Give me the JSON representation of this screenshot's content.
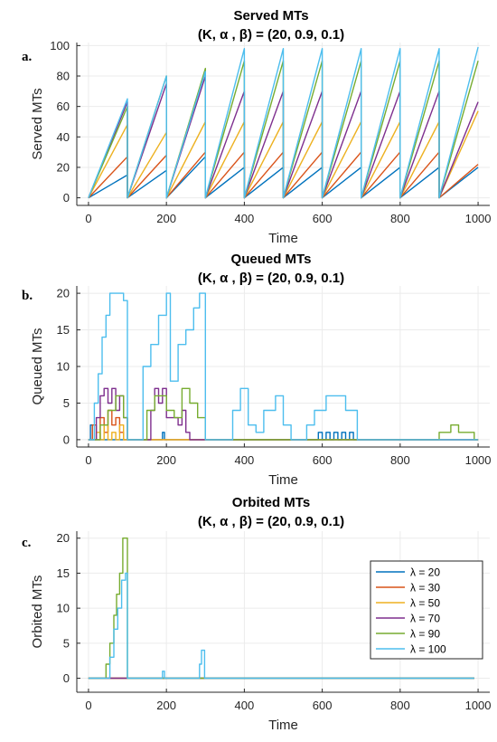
{
  "chart_data": [
    {
      "type": "line",
      "panel_label": "a.",
      "title": "Served MTs",
      "subtitle": "(K, α , β) =  (20, 0.9, 0.1)",
      "xlabel": "Time",
      "ylabel": "Served MTs",
      "xlim": [
        -30,
        1030
      ],
      "ylim": [
        -5,
        102
      ],
      "xticks": [
        0,
        200,
        400,
        600,
        800,
        1000
      ],
      "yticks": [
        0,
        20,
        40,
        60,
        80,
        100
      ],
      "grid": true,
      "series": [
        {
          "name": "λ = 20",
          "color": "#0072BD",
          "x": [
            0,
            100,
            100,
            200,
            200,
            300,
            300,
            400,
            400,
            500,
            500,
            600,
            600,
            700,
            700,
            800,
            800,
            900,
            900,
            1000
          ],
          "y": [
            0,
            15,
            0,
            18,
            0,
            27,
            0,
            20,
            0,
            20,
            0,
            20,
            0,
            20,
            0,
            20,
            0,
            20,
            0,
            20
          ]
        },
        {
          "name": "λ = 30",
          "color": "#D95319",
          "x": [
            0,
            100,
            100,
            200,
            200,
            300,
            300,
            400,
            400,
            500,
            500,
            600,
            600,
            700,
            700,
            800,
            800,
            900,
            900,
            1000
          ],
          "y": [
            0,
            27,
            0,
            28,
            0,
            30,
            0,
            30,
            0,
            30,
            0,
            30,
            0,
            30,
            0,
            30,
            0,
            30,
            0,
            22
          ]
        },
        {
          "name": "λ = 50",
          "color": "#EDB120",
          "x": [
            0,
            100,
            100,
            200,
            200,
            300,
            300,
            400,
            400,
            500,
            500,
            600,
            600,
            700,
            700,
            800,
            800,
            900,
            900,
            1000
          ],
          "y": [
            0,
            48,
            0,
            43,
            0,
            50,
            0,
            50,
            0,
            50,
            0,
            50,
            0,
            50,
            0,
            50,
            0,
            50,
            0,
            57
          ]
        },
        {
          "name": "λ = 70",
          "color": "#7E2F8E",
          "x": [
            0,
            100,
            100,
            200,
            200,
            300,
            300,
            400,
            400,
            500,
            500,
            600,
            600,
            700,
            700,
            800,
            800,
            900,
            900,
            1000
          ],
          "y": [
            0,
            63,
            0,
            75,
            0,
            80,
            0,
            70,
            0,
            70,
            0,
            70,
            0,
            70,
            0,
            70,
            0,
            70,
            0,
            63
          ]
        },
        {
          "name": "λ = 90",
          "color": "#77AC30",
          "x": [
            0,
            100,
            100,
            200,
            200,
            300,
            300,
            400,
            400,
            500,
            500,
            600,
            600,
            700,
            700,
            800,
            800,
            900,
            900,
            1000
          ],
          "y": [
            0,
            60,
            0,
            80,
            0,
            85,
            0,
            90,
            0,
            90,
            0,
            90,
            0,
            90,
            0,
            90,
            0,
            90,
            0,
            90
          ]
        },
        {
          "name": "λ = 100",
          "color": "#4DBEEE",
          "x": [
            0,
            100,
            100,
            200,
            200,
            300,
            300,
            400,
            400,
            500,
            500,
            600,
            600,
            700,
            700,
            800,
            800,
            900,
            900,
            1000
          ],
          "y": [
            0,
            65,
            0,
            80,
            0,
            83,
            0,
            98,
            0,
            98,
            0,
            98,
            0,
            98,
            0,
            98,
            0,
            98,
            0,
            99
          ]
        }
      ]
    },
    {
      "type": "line",
      "panel_label": "b.",
      "title": "Queued MTs",
      "subtitle": "(K, α , β) =  (20, 0.9, 0.1)",
      "xlabel": "Time",
      "ylabel": "Queued MTs",
      "xlim": [
        -30,
        1030
      ],
      "ylim": [
        -1,
        21
      ],
      "xticks": [
        0,
        200,
        400,
        600,
        800,
        1000
      ],
      "yticks": [
        0,
        5,
        10,
        15,
        20
      ],
      "grid": true,
      "series": [
        {
          "name": "λ = 20",
          "color": "#0072BD",
          "x": [
            0,
            5,
            5,
            10,
            10,
            190,
            190,
            195,
            195,
            200,
            200,
            590,
            590,
            600,
            600,
            610,
            610,
            620,
            620,
            630,
            630,
            640,
            640,
            650,
            650,
            660,
            660,
            670,
            670,
            680,
            680,
            690,
            690,
            1000
          ],
          "y": [
            0,
            0,
            2,
            2,
            0,
            0,
            1,
            1,
            0,
            0,
            0,
            0,
            1,
            1,
            0,
            0,
            1,
            1,
            0,
            0,
            1,
            1,
            0,
            0,
            1,
            1,
            0,
            0,
            1,
            1,
            0,
            0,
            0,
            0
          ]
        },
        {
          "name": "λ = 30",
          "color": "#D95319",
          "x": [
            0,
            10,
            10,
            20,
            20,
            30,
            30,
            40,
            40,
            50,
            50,
            60,
            60,
            70,
            70,
            80,
            80,
            90,
            90,
            1000
          ],
          "y": [
            0,
            0,
            2,
            2,
            0,
            0,
            3,
            3,
            1,
            1,
            4,
            4,
            2,
            2,
            3,
            3,
            1,
            1,
            0,
            0
          ]
        },
        {
          "name": "λ = 50",
          "color": "#EDB120",
          "x": [
            0,
            20,
            20,
            30,
            30,
            40,
            40,
            50,
            50,
            60,
            60,
            70,
            70,
            80,
            80,
            90,
            90,
            1000
          ],
          "y": [
            0,
            0,
            1,
            1,
            0,
            0,
            2,
            2,
            0,
            0,
            1,
            1,
            0,
            0,
            2,
            2,
            0,
            0
          ]
        },
        {
          "name": "λ = 70",
          "color": "#7E2F8E",
          "x": [
            0,
            20,
            20,
            30,
            30,
            40,
            40,
            50,
            50,
            60,
            60,
            70,
            70,
            80,
            80,
            90,
            90,
            100,
            100,
            160,
            160,
            170,
            170,
            180,
            180,
            190,
            190,
            200,
            200,
            230,
            230,
            240,
            240,
            250,
            250,
            260,
            260,
            1000
          ],
          "y": [
            0,
            0,
            3,
            3,
            6,
            6,
            7,
            7,
            5,
            5,
            7,
            7,
            4,
            4,
            6,
            6,
            3,
            3,
            0,
            0,
            4,
            4,
            7,
            7,
            5,
            5,
            7,
            7,
            3,
            3,
            2,
            2,
            4,
            4,
            1,
            1,
            0,
            0
          ]
        },
        {
          "name": "λ = 90",
          "color": "#77AC30",
          "x": [
            0,
            30,
            30,
            50,
            50,
            70,
            70,
            90,
            90,
            100,
            100,
            150,
            150,
            170,
            170,
            200,
            200,
            220,
            220,
            240,
            240,
            260,
            260,
            280,
            280,
            300,
            300,
            900,
            900,
            930,
            930,
            950,
            950,
            970,
            970,
            990,
            990,
            1000
          ],
          "y": [
            0,
            0,
            2,
            2,
            4,
            4,
            6,
            6,
            3,
            3,
            0,
            0,
            4,
            4,
            6,
            6,
            4,
            4,
            3,
            3,
            7,
            7,
            5,
            5,
            3,
            3,
            0,
            0,
            1,
            1,
            2,
            2,
            1,
            1,
            1,
            1,
            0,
            0
          ]
        },
        {
          "name": "λ = 100",
          "color": "#4DBEEE",
          "x": [
            0,
            15,
            15,
            25,
            25,
            35,
            35,
            45,
            45,
            55,
            55,
            90,
            90,
            100,
            100,
            140,
            140,
            160,
            160,
            180,
            180,
            200,
            200,
            210,
            210,
            230,
            230,
            250,
            250,
            270,
            270,
            285,
            285,
            300,
            300,
            370,
            370,
            390,
            390,
            410,
            410,
            430,
            430,
            450,
            450,
            480,
            480,
            500,
            500,
            520,
            520,
            560,
            560,
            580,
            580,
            610,
            610,
            630,
            630,
            660,
            660,
            690,
            690,
            1000
          ],
          "y": [
            0,
            0,
            5,
            5,
            9,
            9,
            14,
            14,
            17,
            17,
            20,
            20,
            19,
            19,
            0,
            0,
            10,
            10,
            13,
            13,
            17,
            17,
            20,
            20,
            8,
            8,
            13,
            13,
            15,
            15,
            18,
            18,
            20,
            20,
            0,
            0,
            4,
            4,
            7,
            7,
            2,
            2,
            1,
            1,
            4,
            4,
            6,
            6,
            2,
            2,
            0,
            0,
            2,
            2,
            4,
            4,
            6,
            6,
            6,
            6,
            4,
            4,
            0,
            0
          ]
        }
      ]
    },
    {
      "type": "line",
      "panel_label": "c.",
      "title": "Orbited MTs",
      "subtitle": "(K, α , β) =  (20, 0.9, 0.1)",
      "xlabel": "Time",
      "ylabel": "Orbited MTs",
      "xlim": [
        -30,
        1030
      ],
      "ylim": [
        -2,
        21
      ],
      "xticks": [
        0,
        200,
        400,
        600,
        800,
        1000
      ],
      "yticks": [
        0,
        5,
        10,
        15,
        20
      ],
      "grid": true,
      "legend_position": "right",
      "series": [
        {
          "name": "λ = 20",
          "color": "#0072BD",
          "x": [
            0,
            990
          ],
          "y": [
            0,
            0
          ]
        },
        {
          "name": "λ = 30",
          "color": "#D95319",
          "x": [
            0,
            990
          ],
          "y": [
            0,
            0
          ]
        },
        {
          "name": "λ = 50",
          "color": "#EDB120",
          "x": [
            0,
            990
          ],
          "y": [
            0,
            0
          ]
        },
        {
          "name": "λ = 70",
          "color": "#7E2F8E",
          "x": [
            0,
            990
          ],
          "y": [
            0,
            0
          ]
        },
        {
          "name": "λ = 90",
          "color": "#77AC30",
          "x": [
            0,
            45,
            45,
            55,
            55,
            65,
            65,
            72,
            72,
            80,
            80,
            88,
            88,
            95,
            95,
            100,
            100,
            990
          ],
          "y": [
            0,
            0,
            2,
            2,
            5,
            5,
            9,
            9,
            12,
            12,
            15,
            15,
            20,
            20,
            20,
            20,
            0,
            0
          ]
        },
        {
          "name": "λ = 100",
          "color": "#4DBEEE",
          "x": [
            0,
            55,
            55,
            65,
            65,
            75,
            75,
            85,
            85,
            95,
            95,
            100,
            100,
            190,
            190,
            195,
            195,
            285,
            285,
            290,
            290,
            298,
            298,
            990
          ],
          "y": [
            0,
            0,
            3,
            3,
            7,
            7,
            10,
            10,
            14,
            14,
            15,
            15,
            0,
            0,
            1,
            1,
            0,
            0,
            2,
            2,
            4,
            4,
            0,
            0
          ]
        }
      ]
    }
  ]
}
